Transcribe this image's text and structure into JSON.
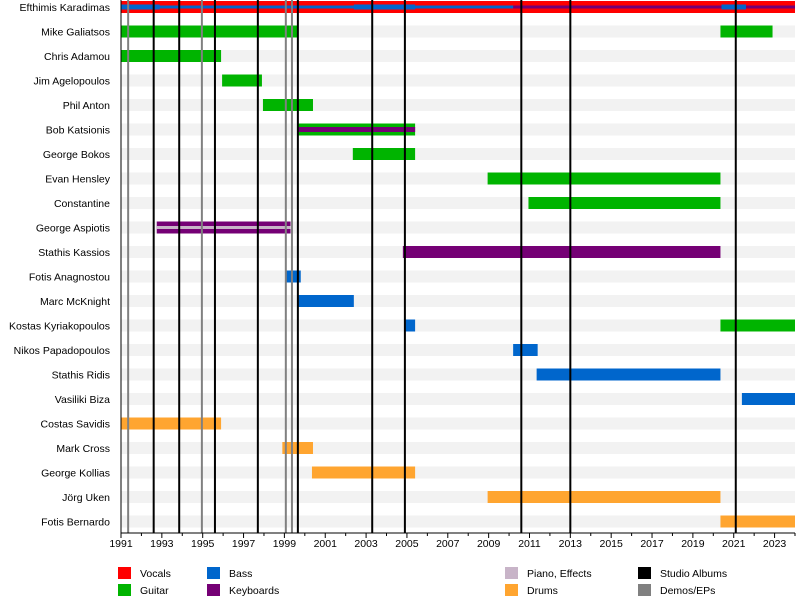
{
  "chart_data": {
    "type": "timeline",
    "xlim": [
      1991,
      2024
    ],
    "x_ticks": [
      1991,
      1993,
      1995,
      1997,
      1999,
      2001,
      2003,
      2005,
      2007,
      2009,
      2011,
      2013,
      2015,
      2017,
      2019,
      2021,
      2023
    ],
    "colors": {
      "Vocals": "#ff0000",
      "Guitar": "#00b400",
      "Bass": "#0066cc",
      "Keyboards": "#750075",
      "Piano, Effects": "#c8b4c8",
      "Drums": "#ffa530",
      "Studio Albums": "#000000",
      "Demos/EPs": "#808080"
    },
    "legend": [
      [
        "Vocals",
        "Bass",
        "Piano, Effects",
        "Studio Albums"
      ],
      [
        "Guitar",
        "Keyboards",
        "Drums",
        "Demos/EPs"
      ]
    ],
    "legend_position": "bottom",
    "studio_albums": [
      1992.6,
      1993.85,
      1995.6,
      1997.7,
      1999.66,
      2003.3,
      2004.9,
      2010.6,
      2013.0,
      2021.1
    ],
    "demos_eps": [
      1991.35,
      1994.96,
      1999.07,
      1999.37
    ],
    "members": [
      {
        "name": "Efthimis Karadimas",
        "bars": [
          {
            "role": "Vocals",
            "from": 1991,
            "to": 2024
          },
          {
            "role": "Keyboards",
            "from": 1991,
            "to": 2024,
            "thin": true
          },
          {
            "role": "Bass",
            "from": 1991,
            "to": 2010.2,
            "thin": true
          },
          {
            "role": "Bass",
            "from": 1991,
            "to": 1992.9,
            "thin": "mid"
          },
          {
            "role": "Bass",
            "from": 2002.4,
            "to": 2005.4,
            "thin": "mid"
          },
          {
            "role": "Bass",
            "from": 2020.4,
            "to": 2021.6,
            "thin": "mid"
          }
        ]
      },
      {
        "name": "Mike Galiatsos",
        "bars": [
          {
            "role": "Guitar",
            "from": 1991,
            "to": 1999.66
          },
          {
            "role": "Guitar",
            "from": 2020.35,
            "to": 2022.9
          }
        ]
      },
      {
        "name": "Chris Adamou",
        "bars": [
          {
            "role": "Guitar",
            "from": 1991,
            "to": 1995.9
          }
        ]
      },
      {
        "name": "Jim Agelopoulos",
        "bars": [
          {
            "role": "Guitar",
            "from": 1995.95,
            "to": 1997.9
          }
        ]
      },
      {
        "name": "Phil Anton",
        "bars": [
          {
            "role": "Guitar",
            "from": 1997.95,
            "to": 2000.4
          }
        ]
      },
      {
        "name": "Bob Katsionis",
        "bars": [
          {
            "role": "Guitar",
            "from": 1999.66,
            "to": 2005.4
          },
          {
            "role": "Keyboards",
            "from": 1999.66,
            "to": 2005.4,
            "thin": "mid"
          }
        ]
      },
      {
        "name": "George Bokos",
        "bars": [
          {
            "role": "Guitar",
            "from": 2002.35,
            "to": 2005.4
          }
        ]
      },
      {
        "name": "Evan Hensley",
        "bars": [
          {
            "role": "Guitar",
            "from": 2008.95,
            "to": 2020.35
          }
        ]
      },
      {
        "name": "Constantine",
        "bars": [
          {
            "role": "Guitar",
            "from": 2010.95,
            "to": 2020.35
          }
        ]
      },
      {
        "name": "George Aspiotis",
        "bars": [
          {
            "role": "Keyboards",
            "from": 1992.75,
            "to": 1999.3
          },
          {
            "role": "Piano, Effects",
            "from": 1992.75,
            "to": 1999.3,
            "thin": true
          }
        ]
      },
      {
        "name": "Stathis Kassios",
        "bars": [
          {
            "role": "Keyboards",
            "from": 2004.8,
            "to": 2020.35
          }
        ]
      },
      {
        "name": "Fotis Anagnostou",
        "bars": [
          {
            "role": "Bass",
            "from": 1999.07,
            "to": 1999.8
          }
        ]
      },
      {
        "name": "Marc McKnight",
        "bars": [
          {
            "role": "Bass",
            "from": 1999.66,
            "to": 2002.4
          }
        ]
      },
      {
        "name": "Kostas Kyriakopoulos",
        "bars": [
          {
            "role": "Bass",
            "from": 2004.9,
            "to": 2005.4
          },
          {
            "role": "Guitar",
            "from": 2020.35,
            "to": 2024
          }
        ]
      },
      {
        "name": "Nikos Papadopoulos",
        "bars": [
          {
            "role": "Bass",
            "from": 2010.2,
            "to": 2011.4
          }
        ]
      },
      {
        "name": "Stathis Ridis",
        "bars": [
          {
            "role": "Bass",
            "from": 2011.35,
            "to": 2020.35
          }
        ]
      },
      {
        "name": "Vasiliki Biza",
        "bars": [
          {
            "role": "Bass",
            "from": 2021.4,
            "to": 2024
          }
        ]
      },
      {
        "name": "Costas Savidis",
        "bars": [
          {
            "role": "Drums",
            "from": 1991,
            "to": 1995.9
          }
        ]
      },
      {
        "name": "Mark Cross",
        "bars": [
          {
            "role": "Drums",
            "from": 1998.9,
            "to": 2000.4
          }
        ]
      },
      {
        "name": "George Kollias",
        "bars": [
          {
            "role": "Drums",
            "from": 2000.35,
            "to": 2005.4
          }
        ]
      },
      {
        "name": "Jörg Uken",
        "bars": [
          {
            "role": "Drums",
            "from": 2008.95,
            "to": 2020.35
          }
        ]
      },
      {
        "name": "Fotis Bernardo",
        "bars": [
          {
            "role": "Drums",
            "from": 2020.35,
            "to": 2024
          }
        ]
      }
    ]
  }
}
